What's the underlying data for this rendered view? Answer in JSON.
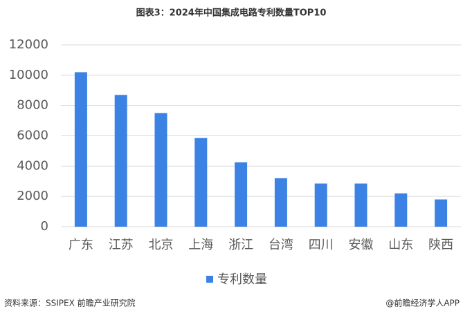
{
  "chart_data": {
    "type": "bar",
    "title": "图表3：2024年中国集成电路专利数量TOP10",
    "categories": [
      "广东",
      "江苏",
      "北京",
      "上海",
      "浙江",
      "台湾",
      "四川",
      "安徽",
      "山东",
      "陕西"
    ],
    "series": [
      {
        "name": "专利数量",
        "color": "#3b82e4",
        "values": [
          10200,
          8700,
          7500,
          5850,
          4250,
          3200,
          2850,
          2850,
          2200,
          1800
        ]
      }
    ],
    "ylim": [
      0,
      12000
    ],
    "yticks": [
      0,
      2000,
      4000,
      6000,
      8000,
      10000,
      12000
    ],
    "grid": true,
    "legend": "bottom",
    "source": "资料来源：SSIPEX 前瞻产业研究院",
    "credit": "@前瞻经济学人APP"
  }
}
